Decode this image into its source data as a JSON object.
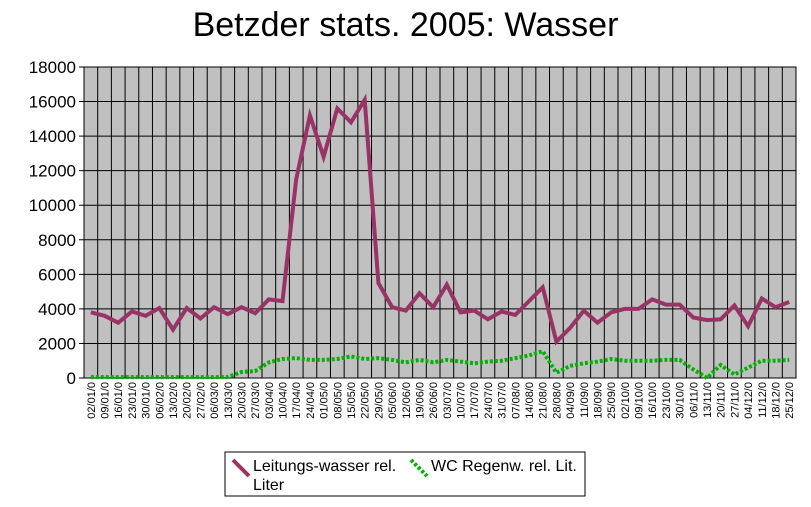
{
  "chart_data": {
    "type": "line",
    "title": "Betzder stats. 2005: Wasser",
    "xlabel": "",
    "ylabel": "",
    "ylim": [
      0,
      18000
    ],
    "yticks": [
      0,
      2000,
      4000,
      6000,
      8000,
      10000,
      12000,
      14000,
      16000,
      18000
    ],
    "grid": true,
    "legend_position": "bottom",
    "plot_background": "#c0c0c0",
    "categories": [
      "02/01/05",
      "09/01/05",
      "16/01/05",
      "23/01/05",
      "30/01/05",
      "06/02/05",
      "13/02/05",
      "20/02/05",
      "27/02/05",
      "06/03/05",
      "13/03/05",
      "20/03/05",
      "27/03/05",
      "03/04/05",
      "10/04/05",
      "17/04/05",
      "24/04/05",
      "01/05/05",
      "08/05/05",
      "15/05/05",
      "22/05/05",
      "29/05/05",
      "05/06/05",
      "12/06/05",
      "19/06/05",
      "26/06/05",
      "03/07/05",
      "10/07/05",
      "17/07/05",
      "24/07/05",
      "31/07/05",
      "07/08/05",
      "14/08/05",
      "21/08/05",
      "28/08/05",
      "04/09/05",
      "11/09/05",
      "18/09/05",
      "25/09/05",
      "02/10/05",
      "09/10/05",
      "16/10/05",
      "23/10/05",
      "30/10/05",
      "06/11/05",
      "13/11/05",
      "20/11/05",
      "27/11/05",
      "04/12/05",
      "11/12/05",
      "18/12/05",
      "25/12/05"
    ],
    "tick_labels": [
      "02/01/0",
      "09/01/0",
      "16/01/0",
      "23/01/0",
      "30/01/0",
      "06/02/0",
      "13/02/0",
      "20/02/0",
      "27/02/0",
      "06/03/0",
      "13/03/0",
      "20/03/0",
      "27/03/0",
      "03/04/0",
      "10/04/0",
      "17/04/0",
      "24/04/0",
      "01/05/0",
      "08/05/0",
      "15/05/0",
      "22/05/0",
      "29/05/0",
      "05/06/0",
      "12/06/0",
      "19/06/0",
      "26/06/0",
      "03/07/0",
      "10/07/0",
      "17/07/0",
      "24/07/0",
      "31/07/0",
      "07/08/0",
      "14/08/0",
      "21/08/0",
      "28/08/0",
      "04/09/0",
      "11/09/0",
      "18/09/0",
      "25/09/0",
      "02/10/0",
      "09/10/0",
      "16/10/0",
      "23/10/0",
      "30/10/0",
      "06/11/0",
      "13/11/0",
      "20/11/0",
      "27/11/0",
      "04/12/0",
      "11/12/0",
      "18/12/0",
      "25/12/0"
    ],
    "series": [
      {
        "name": "Leitungs-wasser rel. Liter",
        "color": "#993366",
        "style": "solid",
        "values": [
          3800,
          3600,
          3200,
          3850,
          3600,
          4050,
          2800,
          4050,
          3450,
          4100,
          3700,
          4100,
          3750,
          4550,
          4450,
          11500,
          15200,
          12800,
          15600,
          14800,
          16100,
          5500,
          4100,
          3900,
          4900,
          4100,
          5400,
          3800,
          3900,
          3400,
          3850,
          3650,
          4450,
          5250,
          2100,
          2900,
          3900,
          3200,
          3800,
          4000,
          4000,
          4550,
          4250,
          4250,
          3500,
          3350,
          3400,
          4200,
          3000,
          4600,
          4100,
          4400
        ]
      },
      {
        "name": "WC Regenw. rel. Lit.",
        "color": "#00b000",
        "style": "dotted",
        "values": [
          50,
          50,
          50,
          50,
          50,
          50,
          50,
          50,
          50,
          50,
          50,
          350,
          400,
          900,
          1100,
          1150,
          1050,
          1050,
          1100,
          1250,
          1100,
          1150,
          1050,
          900,
          1050,
          900,
          1050,
          950,
          850,
          950,
          1000,
          1150,
          1300,
          1550,
          300,
          700,
          850,
          950,
          1100,
          1000,
          1000,
          1000,
          1050,
          1050,
          500,
          0,
          750,
          200,
          600,
          1000,
          1000,
          1050
        ]
      }
    ]
  }
}
